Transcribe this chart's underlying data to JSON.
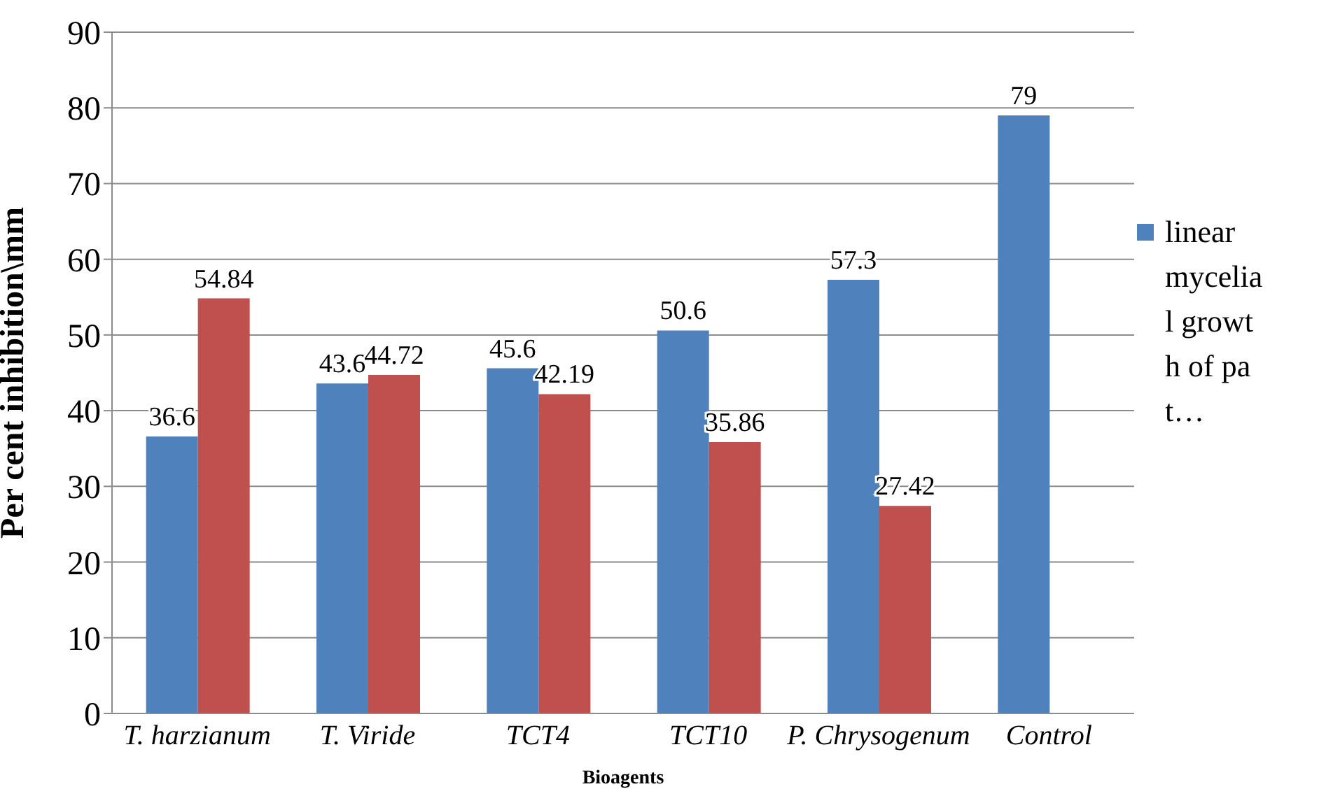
{
  "chart_data": {
    "type": "bar",
    "xlabel": "Bioagents",
    "ylabel": "Per cent inhibition\\mm",
    "categories": [
      "T. harzianum",
      "T. Viride",
      "TCT4",
      "TCT10",
      "P. Chrysogenum",
      "Control"
    ],
    "series": [
      {
        "name": "linear mycelial growth of pat…",
        "color": "#4f81bd",
        "values": [
          36.6,
          43.6,
          45.6,
          50.6,
          57.3,
          79
        ]
      },
      {
        "color": "#c0504d",
        "values": [
          54.84,
          44.72,
          42.19,
          35.86,
          27.42,
          null
        ]
      }
    ],
    "ylim": [
      0,
      90
    ],
    "yticks": [
      0,
      10,
      20,
      30,
      40,
      50,
      60,
      70,
      80,
      90
    ],
    "grid": "y",
    "legend": "right",
    "data_labels": true
  }
}
